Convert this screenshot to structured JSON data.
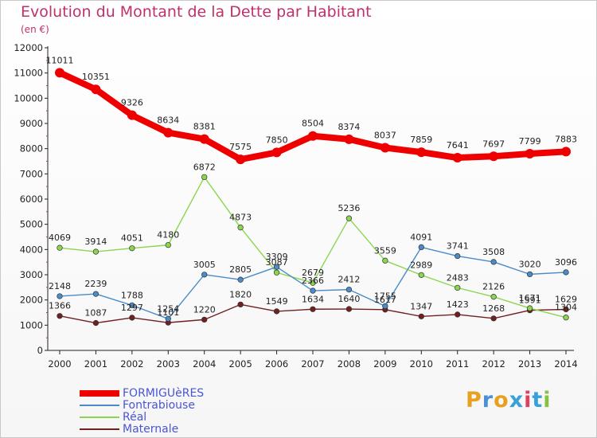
{
  "header": {
    "title": "Evolution du Montant de la Dette par Habitant",
    "subtitle": "(en €)"
  },
  "logo": {
    "text": "Proxiti",
    "colors": [
      "#e8a020",
      "#4a90d9",
      "#e8a020",
      "#3aa0d9",
      "#e04060",
      "#3aa0d9",
      "#8ac040"
    ]
  },
  "chart_data": {
    "type": "line",
    "title": "Evolution du Montant de la Dette par Habitant",
    "subtitle": "(en €)",
    "x": [
      "2000",
      "2001",
      "2002",
      "2003",
      "2004",
      "2005",
      "2006",
      "2007",
      "2008",
      "2009",
      "2010",
      "2011",
      "2012",
      "2013",
      "2014"
    ],
    "ylim": [
      0,
      12000
    ],
    "yticks": [
      0,
      1000,
      2000,
      3000,
      4000,
      5000,
      6000,
      7000,
      8000,
      9000,
      10000,
      11000,
      12000
    ],
    "grid": false,
    "legend_position": "bottom-left",
    "series": [
      {
        "name": "FORMIGUèRES",
        "color": "#ee0000",
        "values": [
          11011,
          10351,
          9326,
          8634,
          8381,
          7575,
          7850,
          8504,
          8374,
          8037,
          7859,
          7641,
          7697,
          7799,
          7883
        ]
      },
      {
        "name": "Fontrabiouse",
        "color": "#4a8cc8",
        "values": [
          2148,
          2239,
          1788,
          1254,
          3005,
          2805,
          3309,
          2366,
          2412,
          1755,
          4091,
          3741,
          3508,
          3020,
          3096
        ]
      },
      {
        "name": "Réal",
        "color": "#8cd550",
        "values": [
          4069,
          3914,
          4051,
          4180,
          6872,
          4873,
          3087,
          2679,
          5236,
          3559,
          2989,
          2483,
          2126,
          1671,
          1304
        ]
      },
      {
        "name": "Maternale",
        "color": "#702020",
        "values": [
          1366,
          1087,
          1297,
          1101,
          1220,
          1820,
          1549,
          1634,
          1640,
          1617,
          1347,
          1423,
          1268,
          1591,
          1629
        ]
      }
    ]
  }
}
